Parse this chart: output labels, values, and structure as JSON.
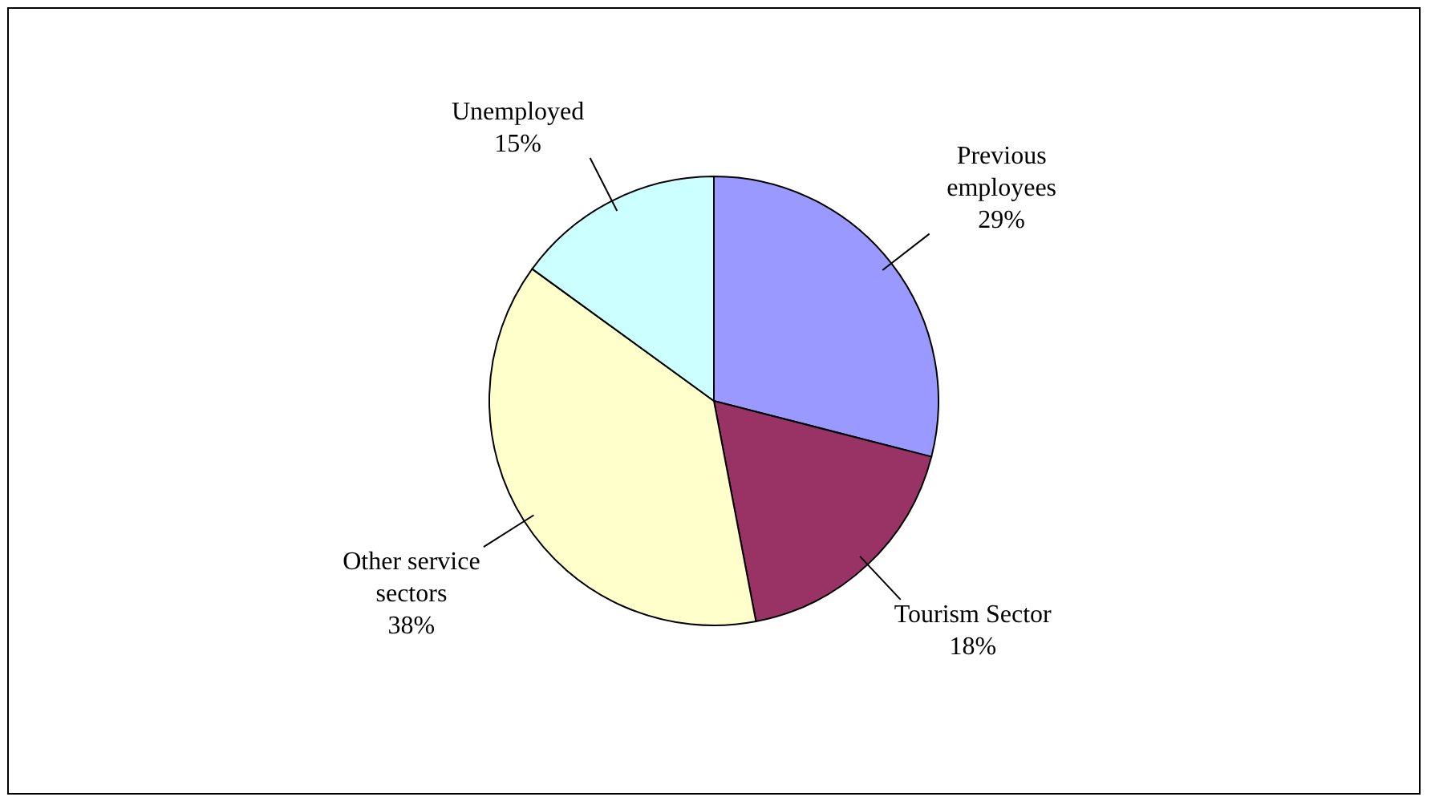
{
  "chart_data": {
    "type": "pie",
    "categories": [
      "Previous employees",
      "Tourism Sector",
      "Other service sectors",
      "Unemployed"
    ],
    "values": [
      29,
      18,
      38,
      15
    ],
    "value_labels": [
      "29%",
      "18%",
      "38%",
      "15%"
    ],
    "colors": [
      "#9999ff",
      "#993366",
      "#ffffcc",
      "#ccffff"
    ]
  }
}
